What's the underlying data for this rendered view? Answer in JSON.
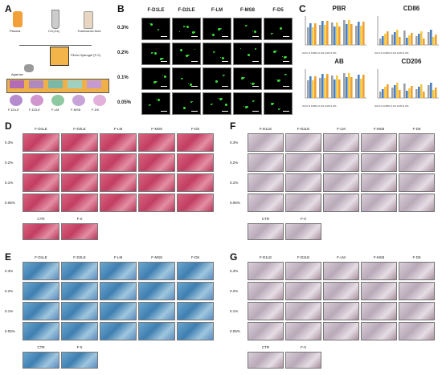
{
  "panelA": {
    "label": "A",
    "items": [
      "Plasma",
      "CO₃Ca₂",
      "Tranexamic Acid"
    ],
    "hydrogel": "Fibrin Hydrogel (F-0)",
    "agarose": "Agarose",
    "plants": [
      "F-D1LE",
      "F-D2LE",
      "F-LM",
      "F-MS8",
      "F-D5"
    ]
  },
  "panelB": {
    "label": "B",
    "cols": [
      "F-D1LE",
      "F-D2LE",
      "F-LM",
      "F-MS8",
      "F-D5"
    ],
    "rows": [
      "0.3%",
      "0.2%",
      "0.1%",
      "0.05%"
    ]
  },
  "panelC": {
    "label": "C",
    "titles": [
      "PBR",
      "CD86",
      "AB",
      "CD206"
    ],
    "legend": [
      "Ctrl",
      "F-0",
      "0.05%",
      "0.1%",
      "0.2%",
      "0.3%"
    ]
  },
  "panelD": {
    "label": "D",
    "cols": [
      "F-D1LE",
      "F-D2LE",
      "F-LM",
      "F-MS8",
      "F-D5"
    ],
    "rows": [
      "0.3%",
      "0.2%",
      "0.1%",
      "0.05%"
    ],
    "ctrl": [
      "CTR",
      "F-0"
    ]
  },
  "panelE": {
    "label": "E",
    "cols": [
      "F-D1LE",
      "F-D2LE",
      "F-LM",
      "F-MS8",
      "F-D5"
    ],
    "rows": [
      "0.3%",
      "0.2%",
      "0.1%",
      "0.05%"
    ],
    "ctrl": [
      "CTR",
      "F-0"
    ]
  },
  "panelF": {
    "label": "F",
    "cols": [
      "F-D1LE",
      "F-D2LE",
      "F-LM",
      "F-MS8",
      "F-D5"
    ],
    "rows": [
      "0.3%",
      "0.2%",
      "0.1%",
      "0.05%"
    ],
    "ctrl": [
      "CTR",
      "F-0"
    ]
  },
  "panelG": {
    "label": "G",
    "cols": [
      "F-D1LE",
      "F-D2LE",
      "F-LM",
      "F-MS8",
      "F-D5"
    ],
    "rows": [
      "0.3%",
      "0.2%",
      "0.1%",
      "0.05%"
    ],
    "ctrl": [
      "CTR",
      "F-0"
    ]
  },
  "colors": {
    "bar_orange": "#f0a030",
    "bar_yellow": "#f5c842",
    "bar_blue": "#4a7fc0",
    "bar_gray": "#9aa0a6"
  }
}
